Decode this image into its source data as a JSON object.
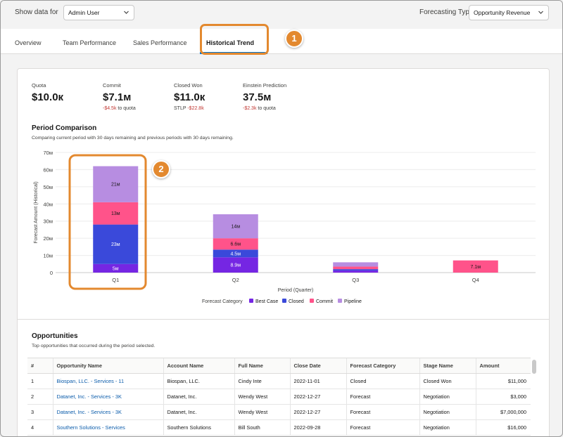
{
  "filters": {
    "show_data_label": "Show data for",
    "show_data_value": "Admin User",
    "forecasting_type_label": "Forecasting Type",
    "forecasting_type_value": "Opportunity Revenue"
  },
  "tabs": [
    {
      "label": "Overview"
    },
    {
      "label": "Team Performance"
    },
    {
      "label": "Sales Performance"
    },
    {
      "label": "Historical Trend",
      "active": true
    }
  ],
  "callouts": [
    "1",
    "2"
  ],
  "kpis": {
    "quota": {
      "label": "Quota",
      "value": "$10.0к"
    },
    "commit": {
      "label": "Commit",
      "value": "$7.1м",
      "delta": "-$4.5k",
      "suffix": "to quota"
    },
    "closed_won": {
      "label": "Closed Won",
      "value": "$11.0к",
      "prefix": "STLP",
      "delta": "-$22.8k"
    },
    "einstein": {
      "label": "Einstein Prediction",
      "value": "37.5м",
      "delta": "-$2.3k",
      "suffix": "to quota"
    }
  },
  "period_comparison": {
    "title": "Period Comparison",
    "subtitle": "Comparing current period with 30 days remaining and previous periods with 30 days remaining."
  },
  "chart_data": {
    "type": "bar",
    "stacked": true,
    "categories": [
      "Q1",
      "Q2",
      "Q3",
      "Q4"
    ],
    "series": [
      {
        "name": "Best Case",
        "color": "#7526e3",
        "values": [
          5,
          8.9,
          1.2,
          0
        ],
        "labels": [
          "5м",
          "8.9м",
          "",
          ""
        ]
      },
      {
        "name": "Closed",
        "color": "#3a49da",
        "values": [
          23,
          4.5,
          0.8,
          0
        ],
        "labels": [
          "23м",
          "4.5м",
          "",
          ""
        ]
      },
      {
        "name": "Commit",
        "color": "#ff538a",
        "values": [
          13,
          6.6,
          1.5,
          7.1
        ],
        "labels": [
          "13м",
          "6.6м",
          "",
          "7.1м"
        ]
      },
      {
        "name": "Pipeline",
        "color": "#b78de1",
        "values": [
          21,
          14,
          2.5,
          0
        ],
        "labels": [
          "21м",
          "14м",
          "",
          ""
        ]
      }
    ],
    "ylim": [
      0,
      70
    ],
    "yticks": [
      "0",
      "10м",
      "20м",
      "30м",
      "40м",
      "50м",
      "60м",
      "70м"
    ],
    "ytick_values": [
      0,
      10,
      20,
      30,
      40,
      50,
      60,
      70
    ],
    "xlabel": "Period (Quarter)",
    "ylabel": "Forecast Amount (Historical)",
    "legend_title": "Forecast Category",
    "legend_position": "bottom",
    "grid": true
  },
  "opportunities": {
    "title": "Opportunities",
    "subtitle": "Top opportunities that occurred during the period selected.",
    "columns": [
      "#",
      "Opportunity Name",
      "Account Name",
      "Full Name",
      "Close Date",
      "Forecast Category",
      "Stage Name",
      "Amount"
    ],
    "rows": [
      [
        "1",
        "Biospan, LLC. - Services - 11",
        "Biospan, LLC.",
        "Cindy Inte",
        "2022-11-01",
        "Closed",
        "Closed Won",
        "$11,000"
      ],
      [
        "2",
        "Datanet, Inc. - Services - 3K",
        "Datanet, Inc.",
        "Wendy West",
        "2022-12-27",
        "Forecast",
        "Negotiation",
        "$3,000"
      ],
      [
        "3",
        "Datanet, Inc. - Services - 3K",
        "Datanet, Inc.",
        "Wendy West",
        "2022-12-27",
        "Forecast",
        "Negotiation",
        "$7,000,000"
      ],
      [
        "4",
        "Southern Solutions - Services",
        "Southern Solutions",
        "Bill South",
        "2022-09-28",
        "Forecast",
        "Negotiation",
        "$16,000"
      ]
    ]
  }
}
